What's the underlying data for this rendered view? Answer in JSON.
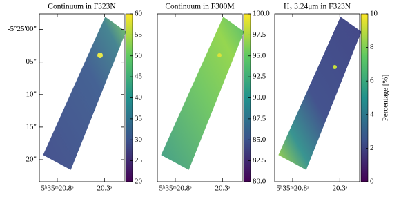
{
  "chart_data": [
    {
      "type": "image",
      "title": "Continuum in F323N",
      "xlim": [
        20.99,
        20.09
      ],
      "xticks": [
        {
          "value": 20.8,
          "label": "5ʰ35ᵐ20.8ˢ"
        },
        {
          "value": 20.3,
          "label": "20.3ˢ"
        }
      ],
      "ylim": [
        -2.4,
        23.4
      ],
      "yticks": [
        {
          "value": 0,
          "label": "-5°25'00\""
        },
        {
          "value": 5,
          "label": "05\""
        },
        {
          "value": 10,
          "label": "10\""
        },
        {
          "value": 15,
          "label": "15\""
        },
        {
          "value": 20,
          "label": "20\""
        }
      ],
      "clim": [
        20,
        60
      ],
      "cticks": [
        20,
        25,
        30,
        35,
        40,
        45,
        50,
        55,
        60
      ]
    },
    {
      "type": "image",
      "title": "Continuum in F300M",
      "xlim": [
        20.99,
        20.09
      ],
      "xticks": [
        {
          "value": 20.8,
          "label": "5ʰ35ᵐ20.8ˢ"
        },
        {
          "value": 20.3,
          "label": "20.3ˢ"
        }
      ],
      "ylim": [
        -2.4,
        23.4
      ],
      "clim": [
        80,
        100
      ],
      "cticks": [
        {
          "value": 80,
          "label": "80.0"
        },
        82.5,
        {
          "value": 85,
          "label": "85.0"
        },
        87.5,
        {
          "value": 90,
          "label": "90.0"
        },
        92.5,
        {
          "value": 95,
          "label": "95.0"
        },
        97.5,
        {
          "value": 100,
          "label": "100.0"
        }
      ]
    },
    {
      "type": "image",
      "title": "H₂ 3.24μm in F323N",
      "xlim": [
        20.99,
        20.09
      ],
      "xticks": [
        {
          "value": 20.8,
          "label": "5ʰ35ᵐ20.8ˢ"
        },
        {
          "value": 20.3,
          "label": "20.3ˢ"
        }
      ],
      "ylim": [
        -2.4,
        23.4
      ],
      "clim": [
        0,
        10
      ],
      "cticks": [
        0,
        2,
        4,
        6,
        8,
        10
      ],
      "clabel": "Percentage [%]"
    }
  ]
}
